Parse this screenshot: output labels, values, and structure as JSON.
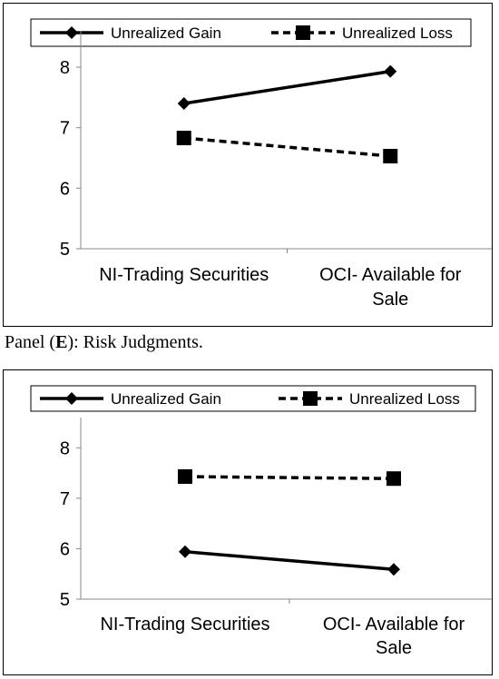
{
  "panels": [
    {
      "chart_data": {
        "type": "line",
        "title": "",
        "xlabel": "",
        "ylabel": "",
        "categories": [
          [
            "NI-Trading Securities"
          ],
          [
            "OCI- Available for",
            "Sale"
          ]
        ],
        "yticks": [
          "5",
          "6",
          "7",
          "8"
        ],
        "ylim": [
          5,
          8.6
        ],
        "grid": false,
        "legend_position": "top",
        "series": [
          {
            "name": "Unrealized Gain",
            "values": [
              7.4,
              7.93
            ],
            "line": "solid",
            "marker": "diamond",
            "color": "#000000"
          },
          {
            "name": "Unrealized Loss",
            "values": [
              6.83,
              6.53
            ],
            "line": "dashed",
            "marker": "square",
            "color": "#000000"
          }
        ]
      }
    },
    {
      "caption": {
        "prefix": "Panel (",
        "bold": "E",
        "suffix": "): Risk Judgments."
      },
      "chart_data": {
        "type": "line",
        "title": "",
        "xlabel": "",
        "ylabel": "",
        "categories": [
          [
            "NI-Trading Securities"
          ],
          [
            "OCI- Available for",
            "Sale"
          ]
        ],
        "yticks": [
          "5",
          "6",
          "7",
          "8"
        ],
        "ylim": [
          5,
          8.6
        ],
        "grid": false,
        "legend_position": "top",
        "series": [
          {
            "name": "Unrealized Gain",
            "values": [
              5.94,
              5.59
            ],
            "line": "solid",
            "marker": "diamond",
            "color": "#000000"
          },
          {
            "name": "Unrealized Loss",
            "values": [
              7.43,
              7.39
            ],
            "line": "dashed",
            "marker": "square",
            "color": "#000000"
          }
        ]
      }
    }
  ]
}
